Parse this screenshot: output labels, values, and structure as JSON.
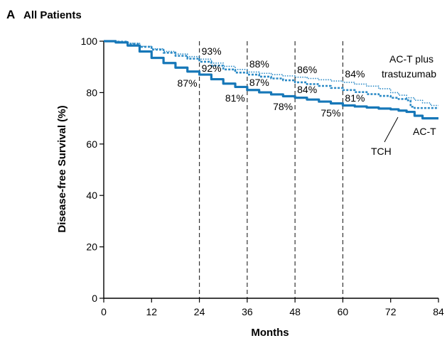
{
  "panel": {
    "letter": "A",
    "title": "All Patients"
  },
  "chart_data": {
    "type": "line",
    "xlabel": "Months",
    "ylabel": "Disease-free Survival (%)",
    "xlim": [
      0,
      84
    ],
    "ylim": [
      0,
      100
    ],
    "x_ticks": [
      "0",
      "12",
      "24",
      "36",
      "48",
      "60",
      "72",
      "84"
    ],
    "y_ticks": [
      "0",
      "20",
      "40",
      "60",
      "80",
      "100"
    ],
    "reference_lines_x": [
      24,
      36,
      48,
      60
    ],
    "series": [
      {
        "name": "AC-T plus trastuzumab",
        "style": "dotted",
        "color": "#2b8ac6",
        "x": [
          0,
          3,
          6,
          9,
          12,
          15,
          18,
          21,
          24,
          27,
          30,
          33,
          36,
          39,
          42,
          45,
          48,
          51,
          54,
          57,
          60,
          63,
          66,
          69,
          72,
          74,
          76,
          78,
          80,
          82,
          84
        ],
        "y": [
          100,
          99.8,
          99.2,
          98,
          97,
          96,
          95,
          94,
          93,
          91.5,
          90.2,
          89,
          88,
          87.5,
          87,
          86.5,
          86,
          85.5,
          85,
          84.5,
          84,
          83.3,
          82.5,
          81.5,
          80,
          79,
          78,
          77,
          76,
          75,
          75
        ]
      },
      {
        "name": "TCH",
        "style": "dashed",
        "color": "#2b8ac6",
        "x": [
          0,
          3,
          6,
          9,
          12,
          15,
          18,
          21,
          24,
          27,
          30,
          33,
          36,
          39,
          42,
          45,
          48,
          51,
          54,
          57,
          60,
          63,
          66,
          69,
          72,
          74,
          76,
          77,
          78,
          80,
          82,
          84
        ],
        "y": [
          100,
          99.8,
          99,
          97.8,
          96.7,
          95.5,
          94.3,
          93.2,
          92,
          90.5,
          89,
          87.8,
          87,
          86.2,
          85.5,
          84.8,
          84,
          83.3,
          82.6,
          81.8,
          81,
          80.2,
          79.4,
          78.7,
          78,
          77.5,
          77,
          74.5,
          74,
          74,
          74,
          74
        ]
      },
      {
        "name": "AC-T",
        "style": "solid",
        "color": "#1677b8",
        "x": [
          0,
          3,
          6,
          9,
          12,
          15,
          18,
          21,
          24,
          27,
          30,
          33,
          36,
          39,
          42,
          45,
          48,
          51,
          54,
          57,
          60,
          63,
          66,
          69,
          72,
          74,
          76,
          78,
          80,
          82,
          84
        ],
        "y": [
          100,
          99.5,
          98.3,
          96,
          93.5,
          91.5,
          89.7,
          88.2,
          87,
          85.2,
          83.5,
          82.2,
          81,
          80.1,
          79.3,
          78.6,
          78,
          77.3,
          76.5,
          75.8,
          75,
          74.6,
          74.2,
          73.8,
          73.5,
          73,
          72.5,
          71,
          70,
          70,
          70
        ]
      }
    ],
    "annotations": [
      {
        "series": "AC-T plus trastuzumab",
        "x": 24,
        "text": "93%"
      },
      {
        "series": "TCH",
        "x": 24,
        "text": "92%"
      },
      {
        "series": "AC-T",
        "x": 24,
        "text": "87%"
      },
      {
        "series": "AC-T plus trastuzumab",
        "x": 36,
        "text": "88%"
      },
      {
        "series": "TCH",
        "x": 36,
        "text": "87%"
      },
      {
        "series": "AC-T",
        "x": 36,
        "text": "81%"
      },
      {
        "series": "AC-T plus trastuzumab",
        "x": 48,
        "text": "86%"
      },
      {
        "series": "TCH",
        "x": 48,
        "text": "84%"
      },
      {
        "series": "AC-T",
        "x": 48,
        "text": "78%"
      },
      {
        "series": "AC-T plus trastuzumab",
        "x": 60,
        "text": "84%"
      },
      {
        "series": "TCH",
        "x": 60,
        "text": "81%"
      },
      {
        "series": "AC-T",
        "x": 60,
        "text": "75%"
      }
    ],
    "series_labels": {
      "act_trastuzumab_line1": "AC-T plus",
      "act_trastuzumab_line2": "trastuzumab",
      "tch": "TCH",
      "act": "AC-T"
    }
  }
}
